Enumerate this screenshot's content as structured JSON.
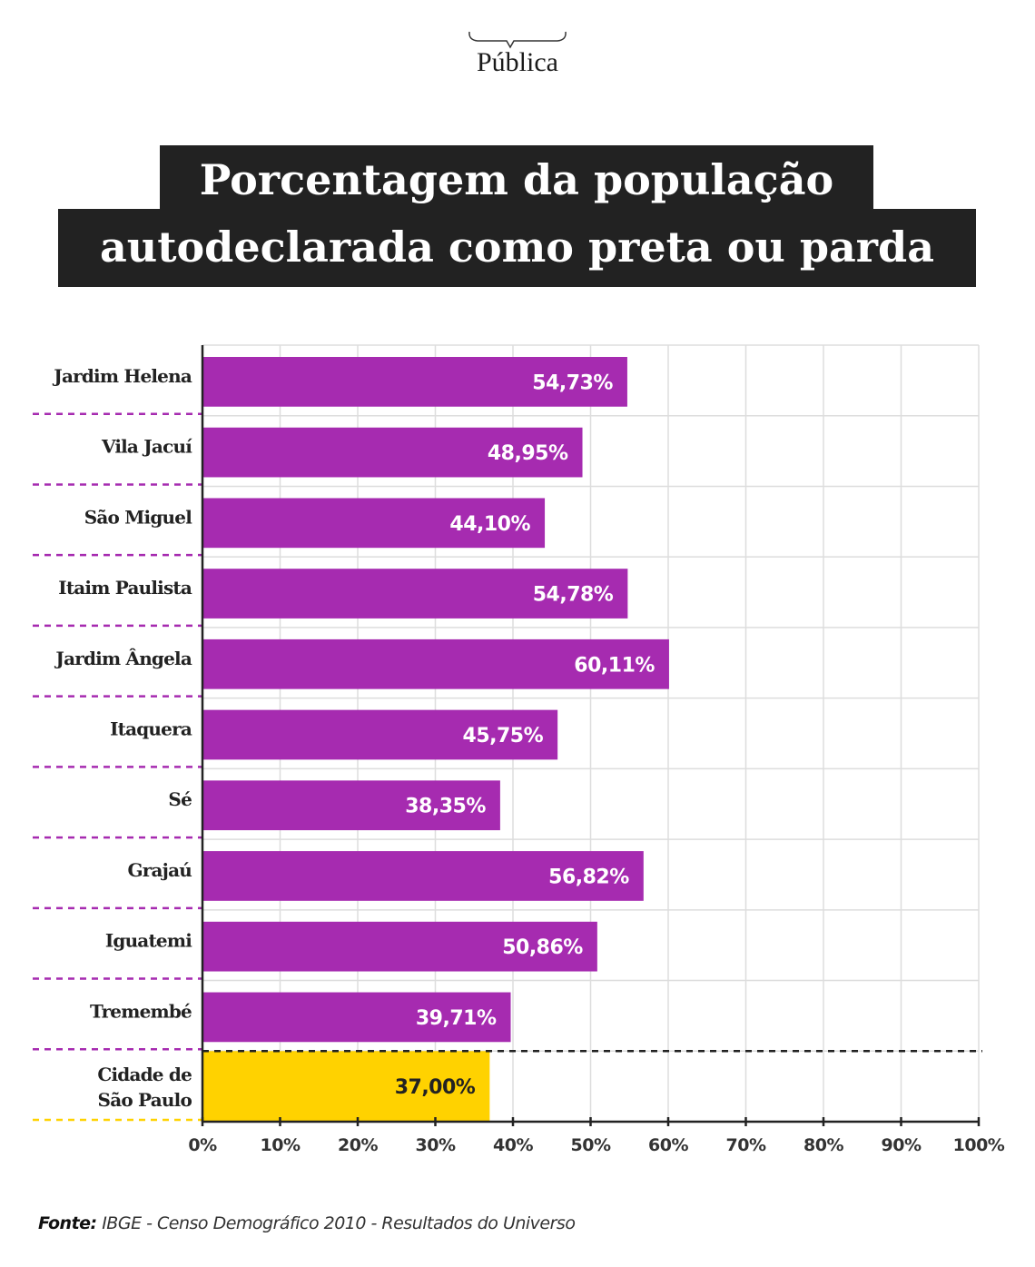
{
  "brand": {
    "name": "Pública"
  },
  "title": {
    "line1": "Porcentagem da população",
    "line2": "autodeclarada como preta ou parda"
  },
  "source": {
    "label": "Fonte:",
    "text": "IBGE - Censo Demográfico 2010 - Resultados do Universo"
  },
  "colors": {
    "bar": "#a62bb0",
    "highlight_bar": "#ffd200",
    "title_bg": "#222222",
    "grid": "#dddddd",
    "axis": "#222222"
  },
  "chart_data": {
    "type": "bar",
    "orientation": "horizontal",
    "title": "Porcentagem da população autodeclarada como preta ou parda",
    "xlabel": "",
    "ylabel": "",
    "xlim": [
      0,
      100
    ],
    "grid": true,
    "categories": [
      "Jardim Helena",
      "Vila Jacuí",
      "São Miguel",
      "Itaim Paulista",
      "Jardim Ângela",
      "Itaquera",
      "Sé",
      "Grajaú",
      "Iguatemi",
      "Tremembé",
      "Cidade de São Paulo"
    ],
    "category_lines": [
      [
        "Jardim Helena"
      ],
      [
        "Vila Jacuí"
      ],
      [
        "São Miguel"
      ],
      [
        "Itaim Paulista"
      ],
      [
        "Jardim Ângela"
      ],
      [
        "Itaquera"
      ],
      [
        "Sé"
      ],
      [
        "Grajaú"
      ],
      [
        "Iguatemi"
      ],
      [
        "Tremembé"
      ],
      [
        "Cidade de",
        "São Paulo"
      ]
    ],
    "values": [
      54.73,
      48.95,
      44.1,
      54.78,
      60.11,
      45.75,
      38.35,
      56.82,
      50.86,
      39.71,
      37.0
    ],
    "data_labels": [
      "54,73%",
      "48,95%",
      "44,10%",
      "54,78%",
      "60,11%",
      "45,75%",
      "38,35%",
      "56,82%",
      "50,86%",
      "39,71%",
      "37,00%"
    ],
    "highlight": [
      "Cidade de São Paulo"
    ],
    "xticks": [
      0,
      10,
      20,
      30,
      40,
      50,
      60,
      70,
      80,
      90,
      100
    ],
    "xtick_labels": [
      "0%",
      "10%",
      "20%",
      "30%",
      "40%",
      "50%",
      "60%",
      "70%",
      "80%",
      "90%",
      "100%"
    ],
    "source": "Fonte: IBGE - Censo Demográfico 2010 - Resultados do Universo"
  }
}
